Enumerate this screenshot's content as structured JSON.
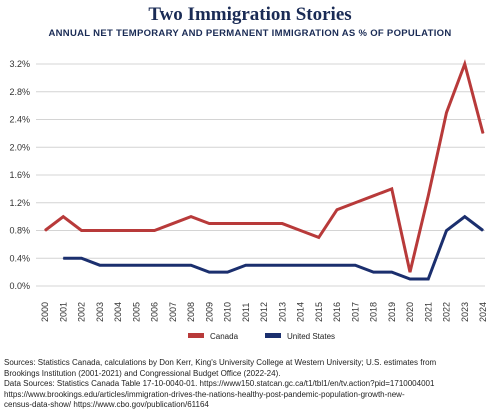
{
  "chart_data": {
    "type": "line",
    "title": "Two Immigration Stories",
    "subtitle": "ANNUAL NET TEMPORARY AND PERMANENT IMMIGRATION AS % OF POPULATION",
    "xlabel": "",
    "ylabel": "",
    "x": [
      "2000",
      "2001",
      "2002",
      "2003",
      "2004",
      "2005",
      "2006",
      "2007",
      "2008",
      "2009",
      "2010",
      "2011",
      "2012",
      "2013",
      "2014",
      "2015",
      "2016",
      "2017",
      "2018",
      "2019",
      "2020",
      "2021",
      "2022",
      "2023",
      "2024"
    ],
    "ylim": [
      0,
      3.2
    ],
    "yticks": [
      0,
      0.4,
      0.8,
      1.2,
      1.6,
      2.0,
      2.4,
      2.8,
      3.2
    ],
    "ytick_labels": [
      "0.0%",
      "0.4%",
      "0.8%",
      "1.2%",
      "1.6%",
      "2.0%",
      "2.4%",
      "2.8%",
      "3.2%"
    ],
    "grid": true,
    "legend_position": "bottom",
    "series": [
      {
        "name": "Canada",
        "color": "#b83a3a",
        "values": [
          0.8,
          1.0,
          0.8,
          0.8,
          0.8,
          0.8,
          0.8,
          0.9,
          1.0,
          0.9,
          0.9,
          0.9,
          0.9,
          0.9,
          0.8,
          0.7,
          1.1,
          1.2,
          1.3,
          1.4,
          0.2,
          1.3,
          2.5,
          3.2,
          2.2
        ]
      },
      {
        "name": "United States",
        "color": "#1b2f6e",
        "values": [
          null,
          0.4,
          0.4,
          0.3,
          0.3,
          0.3,
          0.3,
          0.3,
          0.3,
          0.2,
          0.2,
          0.3,
          0.3,
          0.3,
          0.3,
          0.3,
          0.3,
          0.3,
          0.2,
          0.2,
          0.1,
          0.1,
          0.8,
          1.0,
          0.8
        ]
      }
    ]
  },
  "sources": {
    "line1": "Sources: Statistics Canada, calculations by Don Kerr, King's University College at Western University; U.S. estimates from",
    "line2": "Brookings Institution (2001-2021) and Congressional Budget Office (2022-24).",
    "line3": "Data Sources: Statistics Canada Table 17-10-0040-01. https://www150.statcan.gc.ca/t1/tbl1/en/tv.action?pid=1710004001",
    "line4": "https://www.brookings.edu/articles/immigration-drives-the-nations-healthy-post-pandemic-population-growth-new-",
    "line5": "census-data-show/  https://www.cbo.gov/publication/61164"
  }
}
